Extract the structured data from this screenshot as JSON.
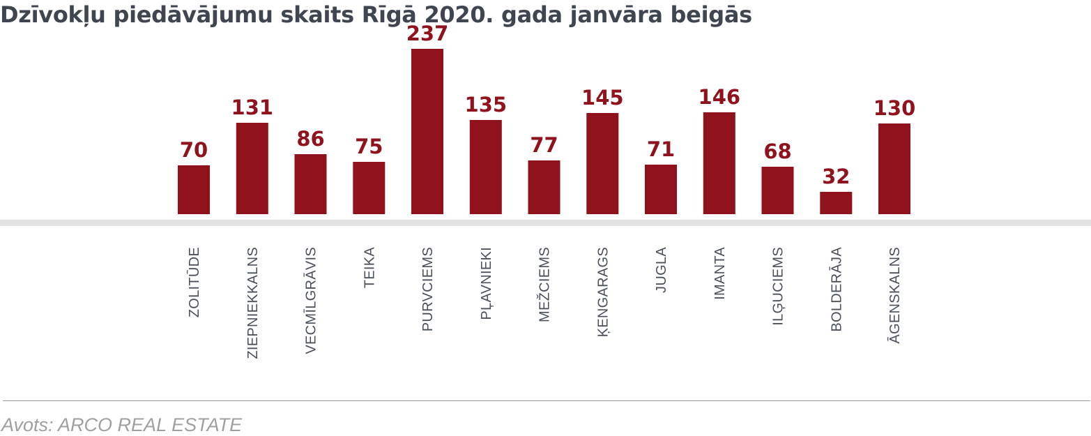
{
  "colors": {
    "bar": "#8f121c",
    "value_label": "#8f121c",
    "title": "#3f4650",
    "axis_band": "#e2e2e2",
    "category_label": "#4a515b",
    "source": "#a0a0a0"
  },
  "chart_data": {
    "type": "bar",
    "title": "Dzīvokļu piedāvājumu skaits Rīgā 2020. gada janvāra beigās",
    "xlabel": "",
    "ylabel": "",
    "categories": [
      "ZOLITŪDE",
      "ZIEPNIEKKALNS",
      "VECMĪLGRĀVIS",
      "TEIKA",
      "PURVCIEMS",
      "PĻAVNIEKI",
      "MEŽCIEMS",
      "ĶENGARAGS",
      "JUGLA",
      "IMANTA",
      "ILĢUCIEMS",
      "BOLDERĀJA",
      "ĀGENSKALNS"
    ],
    "values": [
      70,
      131,
      86,
      75,
      237,
      135,
      77,
      145,
      71,
      146,
      68,
      32,
      130
    ],
    "value_labels": [
      "70",
      "131",
      "86",
      "75",
      "237",
      "135",
      "77",
      "145",
      "71",
      "146",
      "68",
      "32",
      "130"
    ],
    "grid": false,
    "legend": "none",
    "y_axis": "hidden",
    "category_label_orientation": "vertical"
  },
  "source": {
    "text": "Avots: ARCO REAL ESTATE"
  }
}
